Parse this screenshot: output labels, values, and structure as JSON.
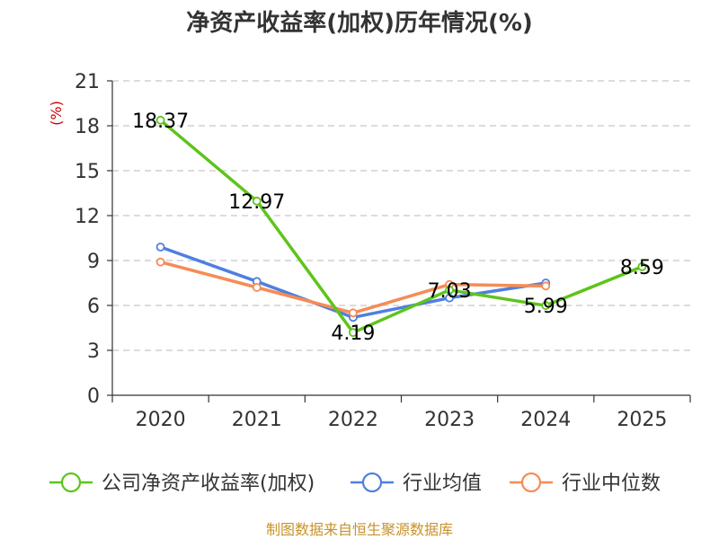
{
  "chart_data": {
    "type": "line",
    "title": "净资产收益率(加权)历年情况(%)",
    "ylabel": "(%)",
    "xlabel": "",
    "categories": [
      "2020",
      "2021",
      "2022",
      "2023",
      "2024",
      "2025"
    ],
    "ylim": [
      0,
      21
    ],
    "yticks": [
      0,
      3,
      6,
      9,
      12,
      15,
      18,
      21
    ],
    "grid": true,
    "legend_position": "bottom",
    "series": [
      {
        "name": "公司净资产收益率(加权)",
        "color": "#5ec41c",
        "values": [
          18.37,
          12.97,
          4.19,
          7.03,
          5.99,
          8.59
        ],
        "labels": [
          "18.37",
          "12.97",
          "4.19",
          "7.03",
          "5.99",
          "8.59"
        ]
      },
      {
        "name": "行业均值",
        "color": "#4f7fe0",
        "values": [
          9.9,
          7.6,
          5.2,
          6.5,
          7.5,
          null
        ]
      },
      {
        "name": "行业中位数",
        "color": "#f58c55",
        "values": [
          8.9,
          7.2,
          5.5,
          7.4,
          7.3,
          null
        ]
      }
    ]
  },
  "source": "制图数据来自恒生聚源数据库"
}
